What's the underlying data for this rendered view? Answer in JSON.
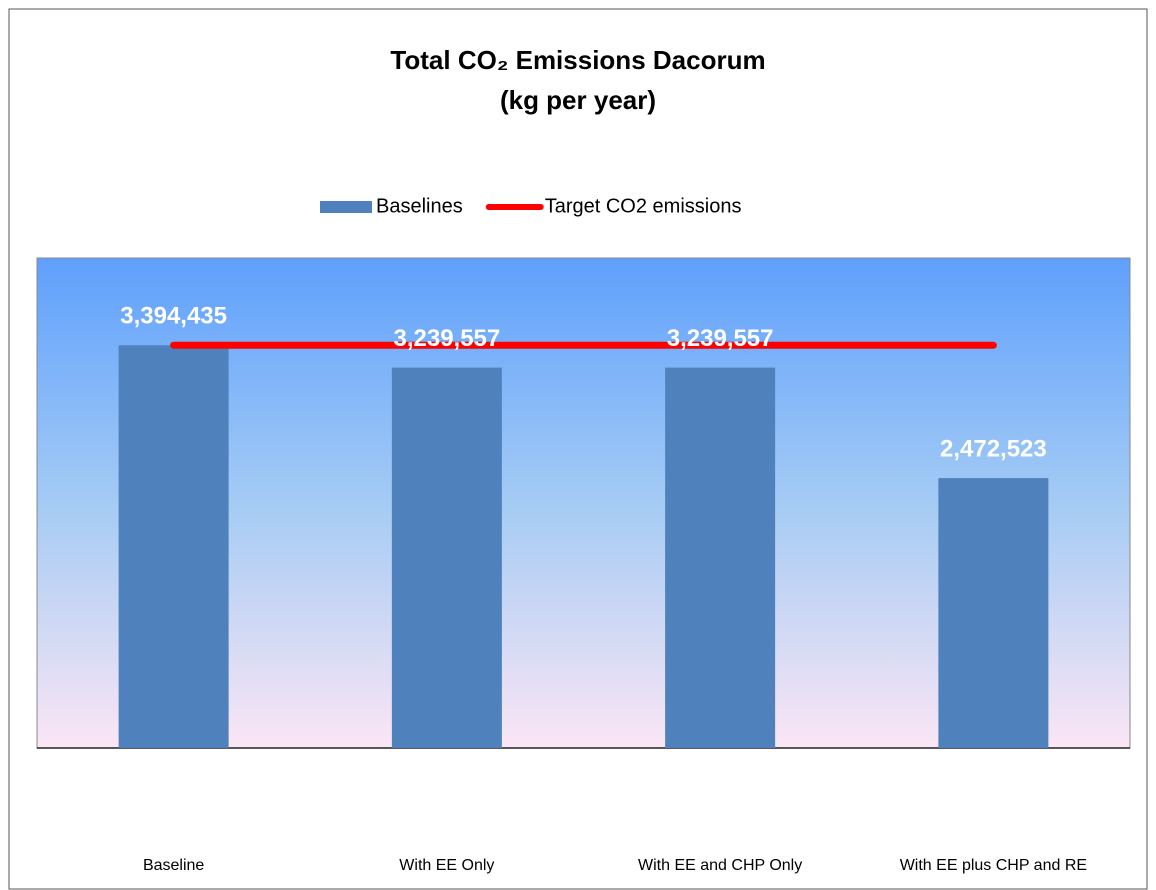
{
  "chart_data": {
    "type": "bar",
    "title": "Total CO₂ Emissions Dacorum",
    "subtitle": "(kg per year)",
    "categories": [
      "Baseline",
      "With EE Only",
      "With EE and CHP Only",
      "With EE plus CHP and RE"
    ],
    "series": [
      {
        "name": "Baselines",
        "color": "#4f81bd",
        "type": "bar",
        "values": [
          3394435,
          3239557,
          3239557,
          2472523
        ],
        "value_labels": [
          "3,394,435",
          "3,239,557",
          "3,239,557",
          "2,472,523"
        ]
      },
      {
        "name": "Target CO2 emissions",
        "color": "#ff0000",
        "type": "line",
        "values": [
          3394435,
          3394435,
          3394435,
          3394435
        ]
      }
    ],
    "ylim": [
      600000,
      4000000
    ],
    "legend": "top"
  }
}
